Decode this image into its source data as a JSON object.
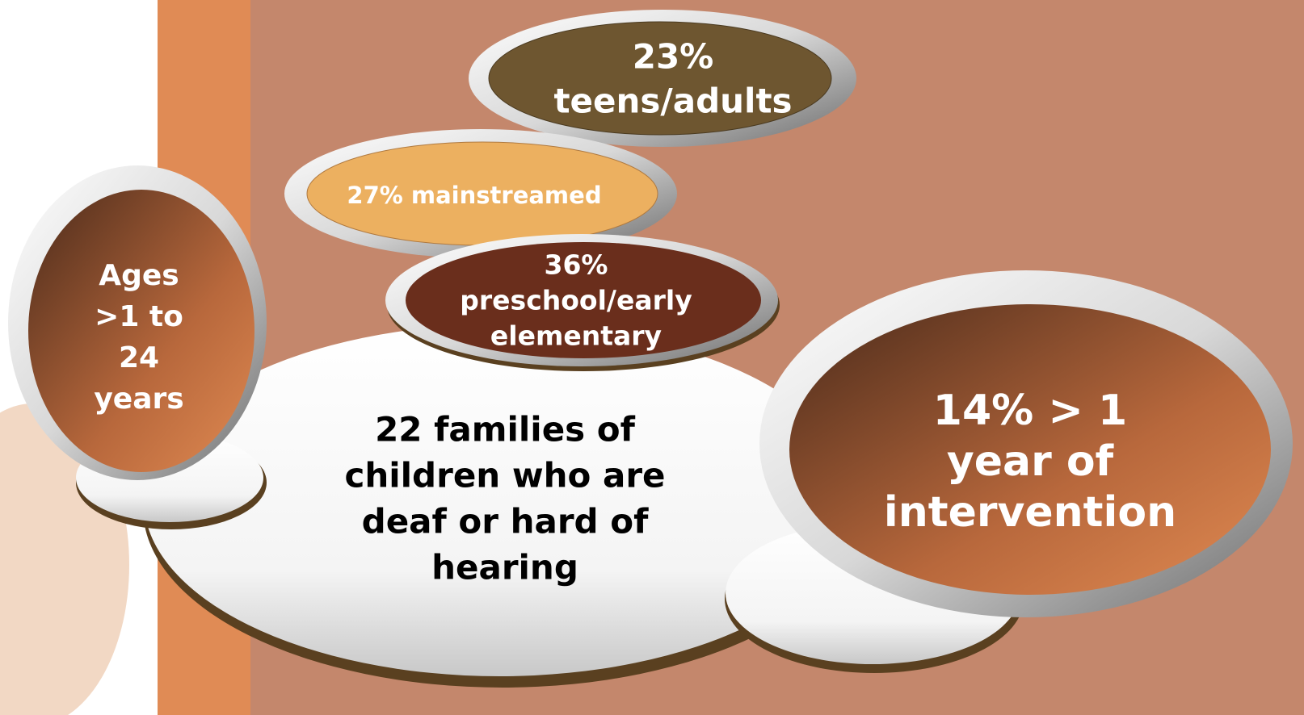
{
  "nodes": [
    {
      "lines": [
        "22 families of",
        "children who are",
        "deaf or hard of",
        "hearing"
      ]
    },
    {
      "lines": [
        "Ages",
        ">1 to",
        "24",
        "years"
      ]
    },
    {
      "lines": [
        "23%",
        "teens/adults"
      ]
    },
    {
      "lines": [
        "27% mainstreamed"
      ]
    },
    {
      "lines": [
        "36%",
        "preschool/early",
        "elementary"
      ]
    },
    {
      "lines": [
        "14% > 1",
        "year of",
        "intervention"
      ]
    }
  ]
}
